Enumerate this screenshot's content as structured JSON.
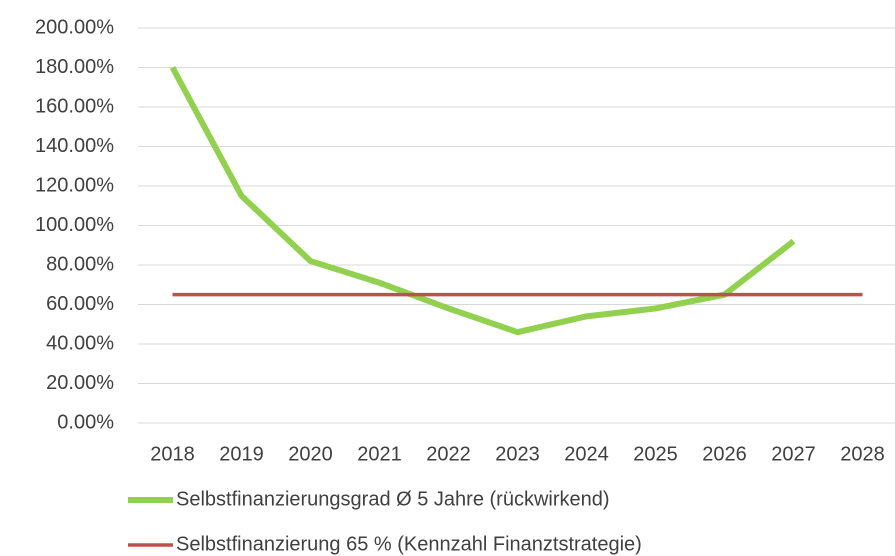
{
  "chart_data": {
    "type": "line",
    "categories": [
      "2018",
      "2019",
      "2020",
      "2021",
      "2022",
      "2023",
      "2024",
      "2025",
      "2026",
      "2027",
      "2028"
    ],
    "series": [
      {
        "name": "Selbstfinanzierungsgrad Ø 5 Jahre (rückwirkend)",
        "color": "#92d050",
        "values": [
          180,
          115,
          82,
          71,
          58,
          46,
          54,
          58,
          65,
          92,
          null
        ]
      },
      {
        "name": "Selbstfinanzierung 65 % (Kennzahl Finanztstrategie)",
        "color": "#c0504d",
        "values": [
          65,
          65,
          65,
          65,
          65,
          65,
          65,
          65,
          65,
          65,
          65
        ]
      }
    ],
    "ylim": [
      0,
      200
    ],
    "yticks": [
      {
        "value": 0,
        "label": "0.00%"
      },
      {
        "value": 20,
        "label": "20.00%"
      },
      {
        "value": 40,
        "label": "40.00%"
      },
      {
        "value": 60,
        "label": "60.00%"
      },
      {
        "value": 80,
        "label": "80.00%"
      },
      {
        "value": 100,
        "label": "100.00%"
      },
      {
        "value": 120,
        "label": "120.00%"
      },
      {
        "value": 140,
        "label": "140.00%"
      },
      {
        "value": 160,
        "label": "160.00%"
      },
      {
        "value": 180,
        "label": "180.00%"
      },
      {
        "value": 200,
        "label": "200.00%"
      }
    ],
    "grid": true
  }
}
